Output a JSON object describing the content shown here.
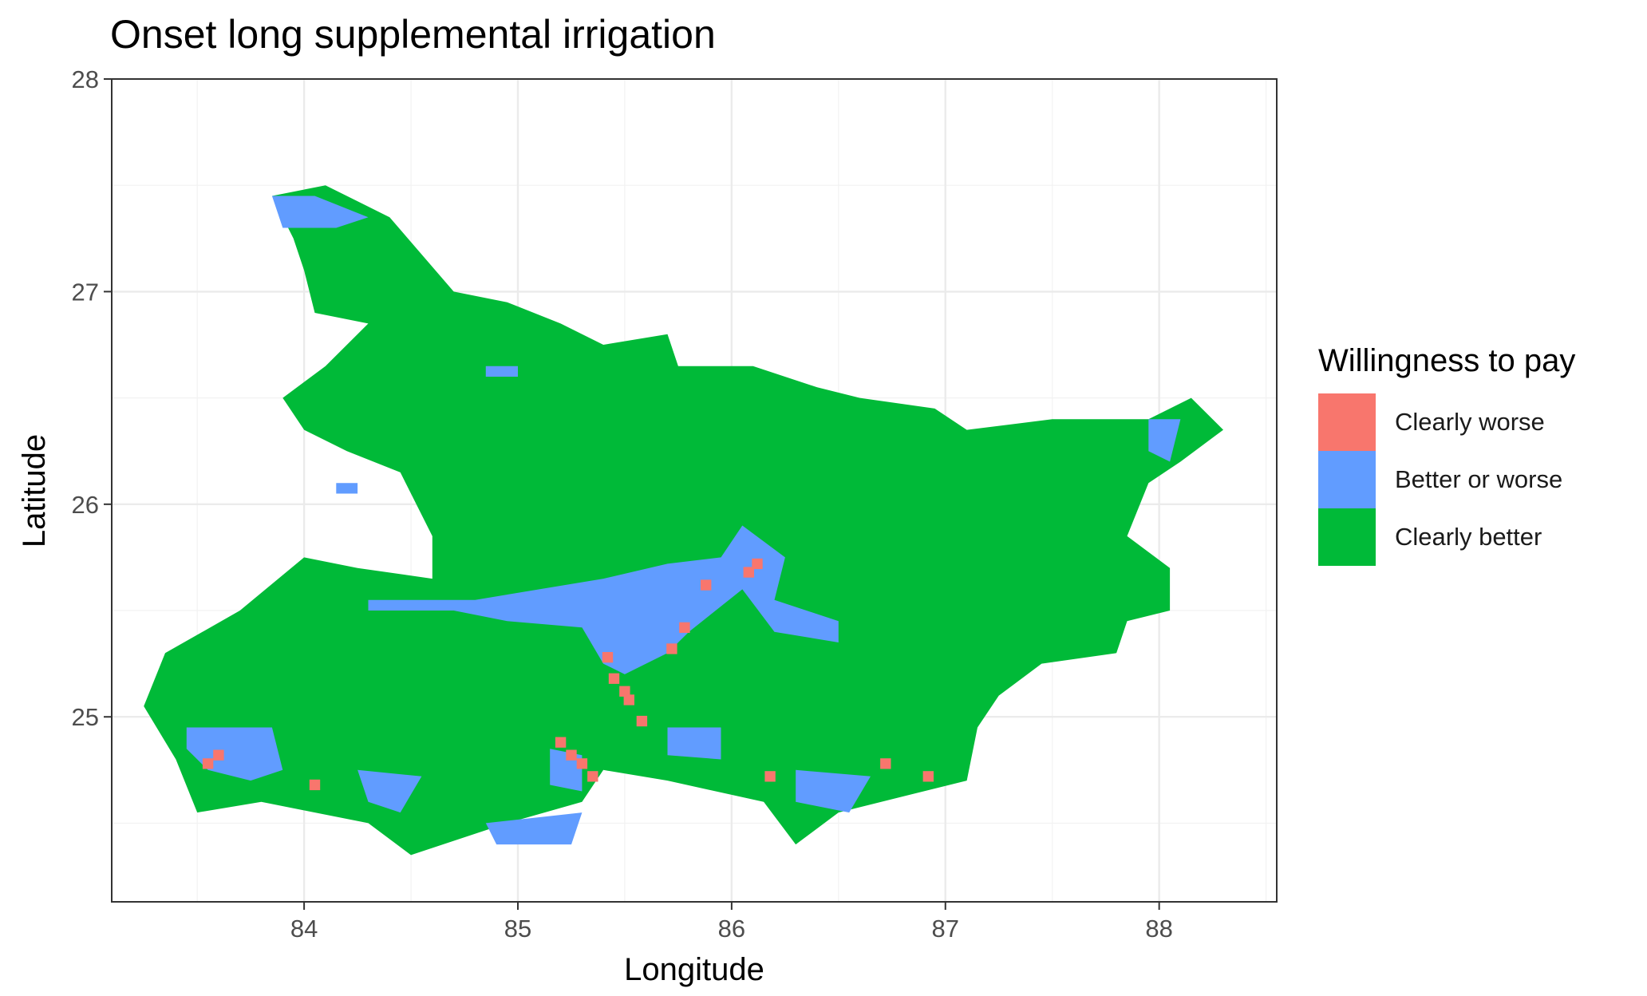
{
  "chart_data": {
    "type": "heatmap",
    "title": "Onset long supplemental irrigation",
    "xlabel": "Longitude",
    "ylabel": "Latitude",
    "xlim": [
      83.1,
      88.55
    ],
    "ylim": [
      24.13,
      28.0
    ],
    "x_ticks": [
      84,
      85,
      86,
      87,
      88
    ],
    "y_ticks": [
      25,
      26,
      27,
      28
    ],
    "grid": true,
    "legend_position": "right",
    "cell_size_deg": 0.05,
    "legend": {
      "title": "Willingness to pay",
      "categories": [
        {
          "label": "Clearly worse",
          "color": "#F8766D"
        },
        {
          "label": "Better or worse",
          "color": "#619CFF"
        },
        {
          "label": "Clearly better",
          "color": "#00BA38"
        }
      ]
    },
    "regions": [
      {
        "category": "Clearly better",
        "shape": "polygon",
        "coords": [
          [
            83.85,
            27.45
          ],
          [
            84.1,
            27.5
          ],
          [
            84.4,
            27.35
          ],
          [
            84.7,
            27.0
          ],
          [
            84.95,
            26.95
          ],
          [
            85.2,
            26.85
          ],
          [
            85.4,
            26.75
          ],
          [
            85.7,
            26.8
          ],
          [
            85.75,
            26.65
          ],
          [
            86.1,
            26.65
          ],
          [
            86.4,
            26.55
          ],
          [
            86.6,
            26.5
          ],
          [
            86.95,
            26.45
          ],
          [
            87.1,
            26.35
          ],
          [
            87.5,
            26.4
          ],
          [
            87.95,
            26.4
          ],
          [
            88.15,
            26.5
          ],
          [
            88.3,
            26.35
          ],
          [
            88.1,
            26.2
          ],
          [
            87.95,
            26.1
          ],
          [
            87.85,
            25.85
          ],
          [
            88.05,
            25.7
          ],
          [
            88.05,
            25.5
          ],
          [
            87.85,
            25.45
          ],
          [
            87.8,
            25.3
          ],
          [
            87.45,
            25.25
          ],
          [
            87.25,
            25.1
          ],
          [
            87.15,
            24.95
          ],
          [
            87.1,
            24.7
          ],
          [
            86.5,
            24.55
          ],
          [
            86.3,
            24.4
          ],
          [
            86.15,
            24.6
          ],
          [
            85.7,
            24.7
          ],
          [
            85.4,
            24.75
          ],
          [
            85.3,
            24.6
          ],
          [
            84.95,
            24.5
          ],
          [
            84.5,
            24.35
          ],
          [
            84.3,
            24.5
          ],
          [
            83.8,
            24.6
          ],
          [
            83.5,
            24.55
          ],
          [
            83.4,
            24.8
          ],
          [
            83.25,
            25.05
          ],
          [
            83.35,
            25.3
          ],
          [
            83.7,
            25.5
          ],
          [
            84.0,
            25.75
          ],
          [
            84.25,
            25.7
          ],
          [
            84.6,
            25.65
          ],
          [
            84.6,
            25.85
          ],
          [
            84.45,
            26.15
          ],
          [
            84.2,
            26.25
          ],
          [
            84.0,
            26.35
          ],
          [
            83.9,
            26.5
          ],
          [
            84.1,
            26.65
          ],
          [
            84.3,
            26.85
          ],
          [
            84.05,
            26.9
          ],
          [
            84.0,
            27.1
          ],
          [
            83.95,
            27.25
          ]
        ]
      },
      {
        "category": "Better or worse",
        "shape": "polygon",
        "coords": [
          [
            84.3,
            25.55
          ],
          [
            84.8,
            25.55
          ],
          [
            85.1,
            25.6
          ],
          [
            85.4,
            25.65
          ],
          [
            85.7,
            25.72
          ],
          [
            85.95,
            25.75
          ],
          [
            86.05,
            25.9
          ],
          [
            86.25,
            25.75
          ],
          [
            86.2,
            25.55
          ],
          [
            86.5,
            25.45
          ],
          [
            86.5,
            25.35
          ],
          [
            86.2,
            25.4
          ],
          [
            86.05,
            25.6
          ],
          [
            85.8,
            25.4
          ],
          [
            85.7,
            25.3
          ],
          [
            85.5,
            25.2
          ],
          [
            85.4,
            25.25
          ],
          [
            85.3,
            25.42
          ],
          [
            84.95,
            25.45
          ],
          [
            84.7,
            25.5
          ],
          [
            84.3,
            25.5
          ]
        ]
      },
      {
        "category": "Better or worse",
        "shape": "polygon",
        "coords": [
          [
            83.45,
            24.95
          ],
          [
            83.85,
            24.95
          ],
          [
            83.9,
            24.75
          ],
          [
            83.75,
            24.7
          ],
          [
            83.55,
            24.75
          ],
          [
            83.45,
            24.85
          ]
        ]
      },
      {
        "category": "Better or worse",
        "shape": "polygon",
        "coords": [
          [
            86.3,
            24.75
          ],
          [
            86.65,
            24.72
          ],
          [
            86.55,
            24.55
          ],
          [
            86.3,
            24.6
          ]
        ]
      },
      {
        "category": "Better or worse",
        "shape": "polygon",
        "coords": [
          [
            85.7,
            24.95
          ],
          [
            85.95,
            24.95
          ],
          [
            85.95,
            24.8
          ],
          [
            85.7,
            24.82
          ]
        ]
      },
      {
        "category": "Better or worse",
        "shape": "polygon",
        "coords": [
          [
            84.85,
            24.5
          ],
          [
            85.3,
            24.55
          ],
          [
            85.25,
            24.4
          ],
          [
            84.9,
            24.4
          ]
        ]
      },
      {
        "category": "Better or worse",
        "shape": "polygon",
        "coords": [
          [
            83.85,
            27.45
          ],
          [
            84.05,
            27.45
          ],
          [
            84.3,
            27.35
          ],
          [
            84.15,
            27.3
          ],
          [
            83.9,
            27.3
          ]
        ]
      },
      {
        "category": "Better or worse",
        "shape": "polygon",
        "coords": [
          [
            84.85,
            26.65
          ],
          [
            85.0,
            26.65
          ],
          [
            85.0,
            26.6
          ],
          [
            84.85,
            26.6
          ]
        ]
      },
      {
        "category": "Better or worse",
        "shape": "polygon",
        "coords": [
          [
            87.95,
            26.4
          ],
          [
            88.1,
            26.4
          ],
          [
            88.05,
            26.2
          ],
          [
            87.95,
            26.25
          ]
        ]
      },
      {
        "category": "Better or worse",
        "shape": "polygon",
        "coords": [
          [
            84.15,
            26.1
          ],
          [
            84.25,
            26.1
          ],
          [
            84.25,
            26.05
          ],
          [
            84.15,
            26.05
          ]
        ]
      },
      {
        "category": "Better or worse",
        "shape": "polygon",
        "coords": [
          [
            84.25,
            24.75
          ],
          [
            84.55,
            24.72
          ],
          [
            84.45,
            24.55
          ],
          [
            84.3,
            24.6
          ]
        ]
      },
      {
        "category": "Better or worse",
        "shape": "polygon",
        "coords": [
          [
            85.15,
            24.85
          ],
          [
            85.3,
            24.82
          ],
          [
            85.3,
            24.65
          ],
          [
            85.15,
            24.68
          ]
        ]
      },
      {
        "category": "Clearly worse",
        "shape": "cells",
        "coords": [
          [
            83.55,
            24.78
          ],
          [
            83.6,
            24.82
          ],
          [
            84.05,
            24.68
          ],
          [
            85.2,
            24.88
          ],
          [
            85.25,
            24.82
          ],
          [
            85.3,
            24.78
          ],
          [
            85.35,
            24.72
          ],
          [
            85.42,
            25.28
          ],
          [
            85.45,
            25.18
          ],
          [
            85.5,
            25.12
          ],
          [
            85.52,
            25.08
          ],
          [
            85.58,
            24.98
          ],
          [
            85.72,
            25.32
          ],
          [
            85.78,
            25.42
          ],
          [
            85.88,
            25.62
          ],
          [
            86.08,
            25.68
          ],
          [
            86.12,
            25.72
          ],
          [
            86.18,
            24.72
          ],
          [
            86.72,
            24.78
          ],
          [
            86.92,
            24.72
          ]
        ]
      }
    ]
  }
}
